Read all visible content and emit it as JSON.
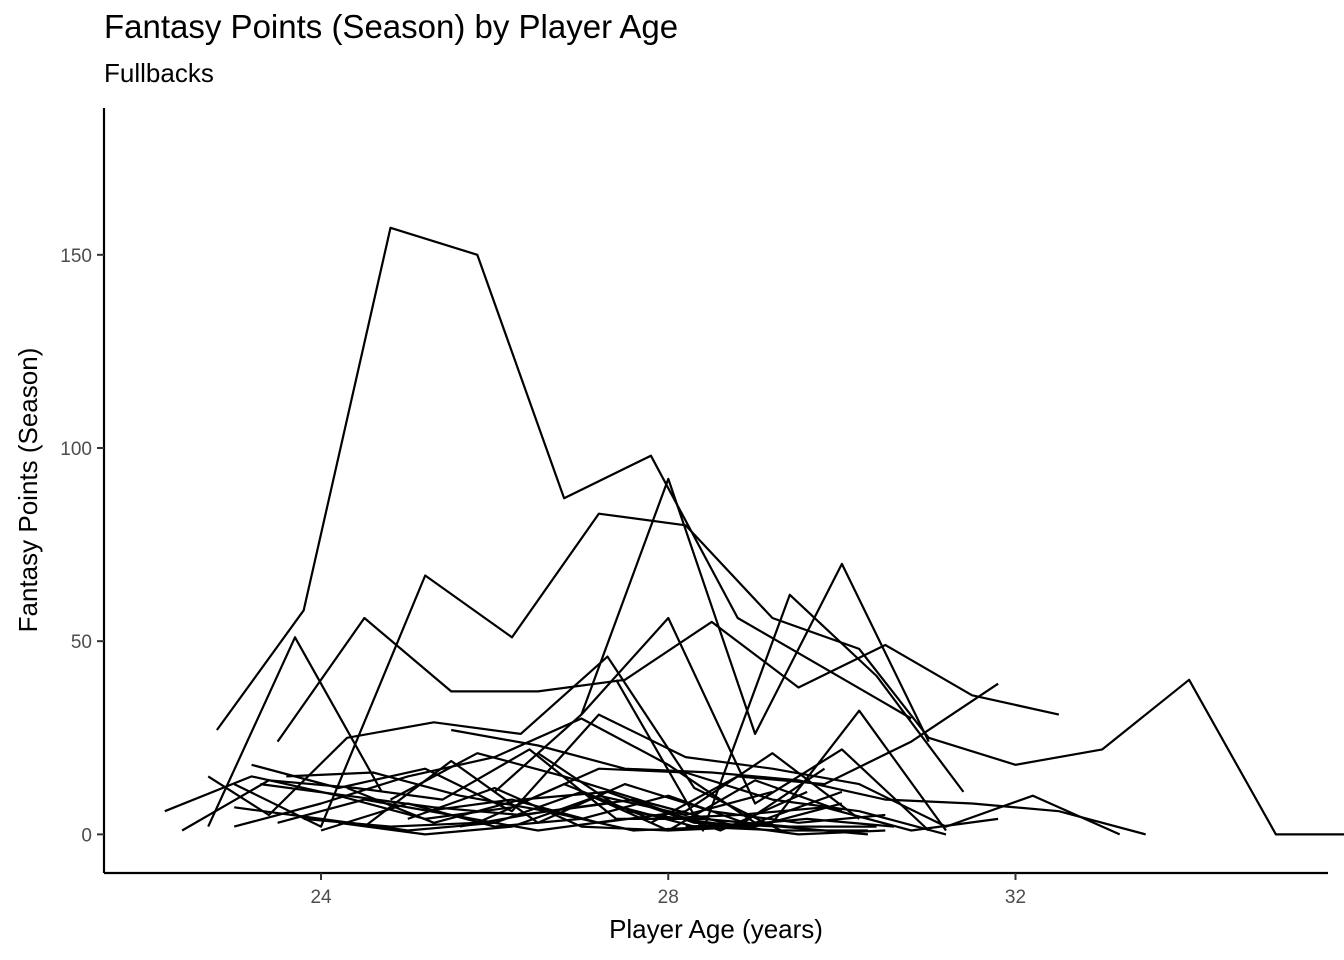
{
  "chart_data": {
    "type": "line",
    "title": "Fantasy Points (Season) by Player Age",
    "subtitle": "Fullbacks",
    "xlabel": "Player Age (years)",
    "ylabel": "Fantasy Points (Season)",
    "xlim": [
      21.5,
      35.6
    ],
    "ylim": [
      -10,
      188
    ],
    "x_ticks": [
      24,
      28,
      32
    ],
    "y_ticks": [
      0,
      50,
      100,
      150
    ],
    "grid": false,
    "legend": "none",
    "line_color": "#000000",
    "series": [
      {
        "x": [
          22.8,
          23.8,
          24.8,
          25.8,
          26.8,
          27.8,
          28.8,
          29.8,
          30.8
        ],
        "y": [
          27,
          58,
          157,
          150,
          87,
          98,
          56,
          43,
          30
        ]
      },
      {
        "x": [
          23.5,
          24.5,
          25.5,
          26.5,
          27.5,
          28.5,
          29.5,
          30.5,
          31.5,
          32.5
        ],
        "y": [
          24,
          56,
          37,
          37,
          40,
          55,
          38,
          49,
          36,
          31
        ]
      },
      {
        "x": [
          23.0,
          24.0,
          25.2,
          26.2,
          27.2,
          28.2,
          29.2,
          30.2,
          31.0,
          32.0,
          33.0,
          34.0,
          35.0,
          36.0
        ],
        "y": [
          13,
          2,
          67,
          51,
          83,
          80,
          56,
          48,
          25,
          18,
          22,
          40,
          0,
          0
        ]
      },
      {
        "x": [
          22.7,
          23.7,
          24.7
        ],
        "y": [
          2,
          51,
          11
        ]
      },
      {
        "x": [
          27.0,
          28.0,
          29.0,
          30.0,
          31.0
        ],
        "y": [
          31,
          92,
          26,
          70,
          24
        ]
      },
      {
        "x": [
          27.8,
          28.8,
          29.8,
          30.8,
          31.8
        ],
        "y": [
          3,
          15,
          13,
          24,
          39
        ]
      },
      {
        "x": [
          27.4,
          28.4,
          29.4,
          30.4,
          31.4
        ],
        "y": [
          40,
          1,
          62,
          41,
          11
        ]
      },
      {
        "x": [
          26.0,
          27.0,
          28.0,
          29.0,
          30.0,
          31.0
        ],
        "y": [
          11,
          31,
          56,
          8,
          22,
          1
        ]
      },
      {
        "x": [
          22.7,
          23.4,
          24.3,
          25.3,
          26.3,
          27.3,
          28.3,
          29.3,
          30.3
        ],
        "y": [
          15,
          5,
          25,
          29,
          26,
          46,
          12,
          1,
          1
        ]
      },
      {
        "x": [
          25.5,
          26.5,
          27.5,
          28.5,
          29.5,
          30.5,
          31.5,
          32.5,
          33.5
        ],
        "y": [
          27,
          23,
          17,
          16,
          14,
          9,
          8,
          6,
          0
        ]
      },
      {
        "x": [
          23.2,
          24.2,
          25.2,
          26.2,
          27.2,
          28.2,
          29.2,
          30.2,
          31.2,
          32.2,
          33.2
        ],
        "y": [
          18,
          12,
          17,
          6,
          31,
          20,
          17,
          13,
          2,
          10,
          0
        ]
      },
      {
        "x": [
          22.2,
          23.2,
          24.2,
          25.2,
          26.2,
          27.2,
          28.2,
          29.2,
          30.2,
          31.2
        ],
        "y": [
          6,
          15,
          10,
          4,
          7,
          17,
          16,
          9,
          6,
          0
        ]
      },
      {
        "x": [
          23.0,
          24.0,
          25.0,
          26.0,
          27.0,
          28.0,
          29.0,
          30.0
        ],
        "y": [
          2,
          8,
          15,
          20,
          30,
          18,
          3,
          11
        ]
      },
      {
        "x": [
          22.4,
          23.4,
          24.4,
          25.4,
          26.4,
          27.4,
          28.4,
          29.4,
          30.4
        ],
        "y": [
          1,
          14,
          12,
          9,
          22,
          4,
          4,
          2,
          2
        ]
      },
      {
        "x": [
          23.3,
          24.3,
          25.3,
          26.3,
          27.3,
          28.3,
          29.3
        ],
        "y": [
          13,
          10,
          7,
          5,
          8,
          2,
          1
        ]
      },
      {
        "x": [
          23.6,
          24.6,
          25.6,
          26.6,
          27.6,
          28.6,
          29.6,
          30.6
        ],
        "y": [
          15,
          16,
          10,
          6,
          1,
          2,
          4,
          2
        ]
      },
      {
        "x": [
          23.8,
          24.8,
          25.8,
          26.8,
          27.8,
          28.8,
          29.8,
          30.8,
          31.8
        ],
        "y": [
          4,
          2,
          3,
          13,
          4,
          5,
          7,
          1,
          4
        ]
      },
      {
        "x": [
          24.2,
          25.2,
          26.2,
          27.2,
          28.2,
          29.2
        ],
        "y": [
          3,
          0,
          2,
          10,
          5,
          11
        ]
      },
      {
        "x": [
          24.8,
          25.8,
          26.8,
          27.8,
          28.8,
          29.8
        ],
        "y": [
          9,
          21,
          15,
          8,
          2,
          17
        ]
      },
      {
        "x": [
          23.0,
          24.0,
          25.0,
          26.0,
          27.0,
          28.0,
          29.0,
          30.0
        ],
        "y": [
          7,
          4,
          1,
          3,
          11,
          1,
          2,
          8
        ]
      },
      {
        "x": [
          24.5,
          25.5,
          26.5,
          27.5,
          28.5,
          29.5,
          30.5
        ],
        "y": [
          2,
          19,
          3,
          13,
          6,
          3,
          5
        ]
      },
      {
        "x": [
          25.0,
          26.0,
          27.0,
          28.0,
          29.0,
          30.0
        ],
        "y": [
          4,
          12,
          2,
          1,
          14,
          6
        ]
      },
      {
        "x": [
          26.5,
          27.5,
          28.5,
          29.5,
          30.5
        ],
        "y": [
          21,
          6,
          3,
          0,
          1
        ]
      },
      {
        "x": [
          23.5,
          24.5,
          25.5,
          26.5,
          27.5
        ],
        "y": [
          3,
          9,
          5,
          1,
          4
        ]
      },
      {
        "x": [
          25.2,
          26.2,
          27.2,
          28.2,
          29.2,
          30.2
        ],
        "y": [
          6,
          9,
          3,
          6,
          21,
          4
        ]
      },
      {
        "x": [
          28.2,
          29.2,
          30.2,
          31.2
        ],
        "y": [
          2,
          3,
          32,
          1
        ]
      },
      {
        "x": [
          24.3,
          25.3,
          26.3,
          27.3,
          28.3,
          29.3,
          30.3
        ],
        "y": [
          12,
          3,
          9,
          11,
          3,
          2,
          0
        ]
      },
      {
        "x": [
          24.0,
          25.0,
          26.0,
          27.0,
          28.0,
          29.0
        ],
        "y": [
          1,
          8,
          2,
          4,
          10,
          2
        ]
      },
      {
        "x": [
          25.6,
          26.6,
          27.6,
          28.6,
          29.6
        ],
        "y": [
          2,
          6,
          9,
          1,
          11
        ]
      }
    ]
  }
}
